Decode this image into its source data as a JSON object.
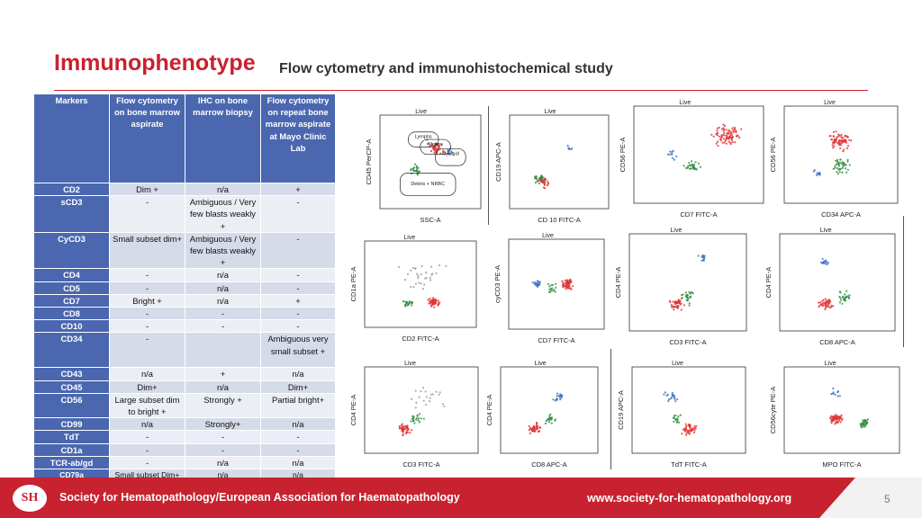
{
  "header": {
    "title": "Immunophenotype",
    "subtitle": "Flow cytometry and immunohistochemical study"
  },
  "table": {
    "columns": [
      "Markers",
      "Flow cytometry on bone marrow aspirate",
      "IHC on bone marrow biopsy",
      "Flow cytometry on repeat bone marrow aspirate at Mayo Clinic Lab"
    ],
    "rows": [
      {
        "marker": "CD2",
        "flow": "Dim +",
        "ihc": "n/a",
        "repeat": "+"
      },
      {
        "marker": "sCD3",
        "flow": "-",
        "ihc": "Ambiguous / Very few blasts weakly +",
        "repeat": "-"
      },
      {
        "marker": "CyCD3",
        "flow": "Small subset dim+",
        "ihc": "Ambiguous / Very few blasts weakly +",
        "repeat": "-"
      },
      {
        "marker": "CD4",
        "flow": "-",
        "ihc": "n/a",
        "repeat": "-"
      },
      {
        "marker": "CD5",
        "flow": "-",
        "ihc": "n/a",
        "repeat": "-"
      },
      {
        "marker": "CD7",
        "flow": "Bright +",
        "ihc": "n/a",
        "repeat": "+"
      },
      {
        "marker": "CD8",
        "flow": "-",
        "ihc": "-",
        "repeat": "-"
      },
      {
        "marker": "CD10",
        "flow": "-",
        "ihc": "-",
        "repeat": "-"
      },
      {
        "marker": "CD34",
        "flow": "-",
        "ihc": "",
        "repeat": "Ambiguous very small subset +"
      },
      {
        "marker": "CD43",
        "flow": "n/a",
        "ihc": "+",
        "repeat": "n/a"
      },
      {
        "marker": "CD45",
        "flow": "Dim+",
        "ihc": "n/a",
        "repeat": "Dim+"
      },
      {
        "marker": "CD56",
        "flow": "Large subset dim to bright +",
        "ihc": "Strongly +",
        "repeat": "Partial bright+"
      },
      {
        "marker": "CD99",
        "flow": "n/a",
        "ihc": "Strongly+",
        "repeat": "n/a"
      },
      {
        "marker": "TdT",
        "flow": "-",
        "ihc": "-",
        "repeat": "-"
      },
      {
        "marker": "CD1a",
        "flow": "-",
        "ihc": "-",
        "repeat": "-"
      },
      {
        "marker": "TCR-ab/gd",
        "flow": "-",
        "ihc": "n/a",
        "repeat": "n/a"
      },
      {
        "marker": "CD79a",
        "flow": "Small subset Dim+",
        "ihc": "n/a",
        "repeat": "n/a"
      }
    ]
  },
  "plots": [
    {
      "live": "Live",
      "xlabel": "SSC-A",
      "ylabel": "CD45 PerCP-A",
      "gates": [
        "Lymphs",
        "Monos",
        "Myeloid",
        "Debris + NRBC"
      ]
    },
    {
      "live": "Live",
      "xlabel": "CD 10 FITC-A",
      "ylabel": "CD19 APC-A"
    },
    {
      "live": "Live",
      "xlabel": "CD7 FITC-A",
      "ylabel": "CD56 PE-A"
    },
    {
      "live": "Live",
      "xlabel": "CD34 APC-A",
      "ylabel": "CD56 PE-A"
    },
    {
      "live": "Live",
      "xlabel": "CD2 FITC-A",
      "ylabel": "CD1a PE-A"
    },
    {
      "live": "Live",
      "xlabel": "CD7 FITC-A",
      "ylabel": "cyCD3 PE-A"
    },
    {
      "live": "Live",
      "xlabel": "CD3 FITC-A",
      "ylabel": "CD4 PE-A"
    },
    {
      "live": "Live",
      "xlabel": "CD8 APC-A",
      "ylabel": "CD4 PE-A"
    },
    {
      "live": "Live",
      "xlabel": "CD3 FITC-A",
      "ylabel": "CD4 PE-A"
    },
    {
      "live": "Live",
      "xlabel": "CD8 APC-A",
      "ylabel": "CD4 PE-A"
    },
    {
      "live": "Live",
      "xlabel": "TdT FITC-A",
      "ylabel": "CD19 APC-A"
    },
    {
      "live": "Live",
      "xlabel": "MPO FITC-A",
      "ylabel": "CD56cyte PE-A"
    }
  ],
  "footer": {
    "logo": "SH",
    "org": "Society for Hematopathology/European Association for Haematopathology",
    "url": "www.society-for-hematopathology.org",
    "page": "5"
  },
  "colors": {
    "accent": "#c8212f",
    "table_header": "#4a67b0"
  }
}
